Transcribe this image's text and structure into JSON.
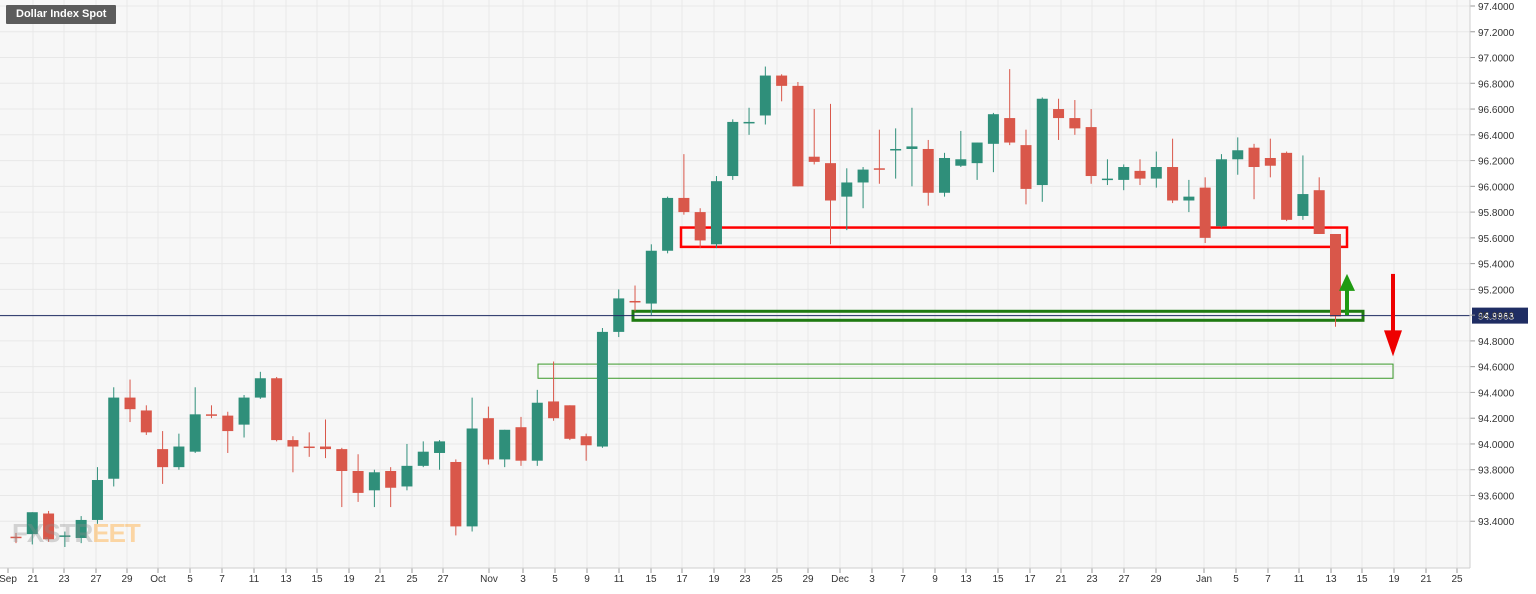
{
  "title": "Dollar Index Spot",
  "watermark": {
    "left": "FXSTR",
    "right": "EET"
  },
  "current_price_label": "94.9963",
  "colors": {
    "up": "#2f8f7a",
    "down": "#d9574a",
    "grid": "#e8e8e8",
    "price_line": "#1f2d63",
    "resistance_box": "#ff0000",
    "support_box": "#1f7a12",
    "lower_box": "#3a9a2a",
    "arrow_up": "#1f9a12",
    "arrow_down": "#ee0000"
  },
  "chart_data": {
    "type": "candlestick",
    "title": "Dollar Index Spot",
    "ylim": [
      93.2,
      97.4
    ],
    "y_ticks": [
      "97.4000",
      "97.2000",
      "97.0000",
      "96.8000",
      "96.6000",
      "96.4000",
      "96.2000",
      "96.0000",
      "95.8000",
      "95.6000",
      "95.4000",
      "95.2000",
      "95.0000",
      "94.8000",
      "94.6000",
      "94.4000",
      "94.2000",
      "94.0000",
      "93.8000",
      "93.6000",
      "93.4000"
    ],
    "x_ticks": [
      "Sep",
      "21",
      "23",
      "27",
      "29",
      "Oct",
      "5",
      "7",
      "11",
      "13",
      "15",
      "19",
      "21",
      "25",
      "27",
      "Nov",
      "3",
      "5",
      "9",
      "11",
      "15",
      "17",
      "19",
      "23",
      "25",
      "29",
      "Dec",
      "3",
      "7",
      "9",
      "13",
      "15",
      "17",
      "21",
      "23",
      "27",
      "29",
      "Jan",
      "5",
      "7",
      "11",
      "13",
      "15",
      "19",
      "21",
      "25"
    ],
    "current_price": 94.9963,
    "candles": [
      {
        "o": 93.28,
        "h": 93.31,
        "l": 93.23,
        "c": 93.27
      },
      {
        "o": 93.3,
        "h": 93.47,
        "l": 93.22,
        "c": 93.47
      },
      {
        "o": 93.46,
        "h": 93.48,
        "l": 93.24,
        "c": 93.26
      },
      {
        "o": 93.28,
        "h": 93.32,
        "l": 93.2,
        "c": 93.29
      },
      {
        "o": 93.27,
        "h": 93.44,
        "l": 93.23,
        "c": 93.41
      },
      {
        "o": 93.41,
        "h": 93.82,
        "l": 93.38,
        "c": 93.72
      },
      {
        "o": 93.73,
        "h": 94.44,
        "l": 93.67,
        "c": 94.36
      },
      {
        "o": 94.36,
        "h": 94.5,
        "l": 94.17,
        "c": 94.27
      },
      {
        "o": 94.26,
        "h": 94.3,
        "l": 94.07,
        "c": 94.09
      },
      {
        "o": 93.96,
        "h": 94.1,
        "l": 93.69,
        "c": 93.82
      },
      {
        "o": 93.82,
        "h": 94.08,
        "l": 93.8,
        "c": 93.98
      },
      {
        "o": 93.94,
        "h": 94.44,
        "l": 93.93,
        "c": 94.23
      },
      {
        "o": 94.23,
        "h": 94.3,
        "l": 94.2,
        "c": 94.22
      },
      {
        "o": 94.22,
        "h": 94.25,
        "l": 93.93,
        "c": 94.1
      },
      {
        "o": 94.15,
        "h": 94.38,
        "l": 94.05,
        "c": 94.36
      },
      {
        "o": 94.36,
        "h": 94.56,
        "l": 94.35,
        "c": 94.51
      },
      {
        "o": 94.51,
        "h": 94.52,
        "l": 94.02,
        "c": 94.03
      },
      {
        "o": 94.03,
        "h": 94.06,
        "l": 93.78,
        "c": 93.98
      },
      {
        "o": 93.98,
        "h": 94.09,
        "l": 93.9,
        "c": 93.97
      },
      {
        "o": 93.98,
        "h": 94.19,
        "l": 93.89,
        "c": 93.96
      },
      {
        "o": 93.96,
        "h": 93.97,
        "l": 93.51,
        "c": 93.79
      },
      {
        "o": 93.79,
        "h": 93.92,
        "l": 93.55,
        "c": 93.62
      },
      {
        "o": 93.64,
        "h": 93.8,
        "l": 93.51,
        "c": 93.78
      },
      {
        "o": 93.79,
        "h": 93.82,
        "l": 93.51,
        "c": 93.66
      },
      {
        "o": 93.67,
        "h": 94.0,
        "l": 93.64,
        "c": 93.83
      },
      {
        "o": 93.83,
        "h": 94.02,
        "l": 93.82,
        "c": 93.94
      },
      {
        "o": 93.93,
        "h": 94.03,
        "l": 93.8,
        "c": 94.02
      },
      {
        "o": 93.86,
        "h": 93.88,
        "l": 93.29,
        "c": 93.36
      },
      {
        "o": 93.36,
        "h": 94.36,
        "l": 93.32,
        "c": 94.12
      },
      {
        "o": 94.2,
        "h": 94.29,
        "l": 93.84,
        "c": 93.88
      },
      {
        "o": 93.88,
        "h": 94.11,
        "l": 93.82,
        "c": 94.11
      },
      {
        "o": 94.13,
        "h": 94.21,
        "l": 93.83,
        "c": 93.87
      },
      {
        "o": 93.87,
        "h": 94.42,
        "l": 93.83,
        "c": 94.32
      },
      {
        "o": 94.33,
        "h": 94.64,
        "l": 94.18,
        "c": 94.2
      },
      {
        "o": 94.3,
        "h": 94.3,
        "l": 94.03,
        "c": 94.04
      },
      {
        "o": 94.06,
        "h": 94.08,
        "l": 93.87,
        "c": 93.99
      },
      {
        "o": 93.98,
        "h": 94.9,
        "l": 93.97,
        "c": 94.87
      },
      {
        "o": 94.87,
        "h": 95.2,
        "l": 94.83,
        "c": 95.13
      },
      {
        "o": 95.11,
        "h": 95.23,
        "l": 95.03,
        "c": 95.1
      },
      {
        "o": 95.09,
        "h": 95.55,
        "l": 95.0,
        "c": 95.5
      },
      {
        "o": 95.5,
        "h": 95.92,
        "l": 95.48,
        "c": 95.91
      },
      {
        "o": 95.91,
        "h": 96.25,
        "l": 95.78,
        "c": 95.8
      },
      {
        "o": 95.8,
        "h": 95.83,
        "l": 95.52,
        "c": 95.58
      },
      {
        "o": 95.55,
        "h": 96.08,
        "l": 95.52,
        "c": 96.04
      },
      {
        "o": 96.08,
        "h": 96.52,
        "l": 96.05,
        "c": 96.5
      },
      {
        "o": 96.5,
        "h": 96.61,
        "l": 96.4,
        "c": 96.5
      },
      {
        "o": 96.55,
        "h": 96.93,
        "l": 96.48,
        "c": 96.86
      },
      {
        "o": 96.86,
        "h": 96.87,
        "l": 96.66,
        "c": 96.78
      },
      {
        "o": 96.78,
        "h": 96.81,
        "l": 96.0,
        "c": 96.0
      },
      {
        "o": 96.23,
        "h": 96.6,
        "l": 96.17,
        "c": 96.19
      },
      {
        "o": 96.18,
        "h": 96.64,
        "l": 95.55,
        "c": 95.89
      },
      {
        "o": 95.92,
        "h": 96.14,
        "l": 95.66,
        "c": 96.03
      },
      {
        "o": 96.03,
        "h": 96.15,
        "l": 95.83,
        "c": 96.13
      },
      {
        "o": 96.14,
        "h": 96.44,
        "l": 96.02,
        "c": 96.13
      },
      {
        "o": 96.28,
        "h": 96.45,
        "l": 96.06,
        "c": 96.29
      },
      {
        "o": 96.29,
        "h": 96.61,
        "l": 96.0,
        "c": 96.31
      },
      {
        "o": 96.29,
        "h": 96.36,
        "l": 95.85,
        "c": 95.95
      },
      {
        "o": 95.95,
        "h": 96.26,
        "l": 95.92,
        "c": 96.22
      },
      {
        "o": 96.16,
        "h": 96.43,
        "l": 96.15,
        "c": 96.21
      },
      {
        "o": 96.18,
        "h": 96.34,
        "l": 96.05,
        "c": 96.34
      },
      {
        "o": 96.33,
        "h": 96.57,
        "l": 96.11,
        "c": 96.56
      },
      {
        "o": 96.53,
        "h": 96.91,
        "l": 96.32,
        "c": 96.34
      },
      {
        "o": 96.32,
        "h": 96.44,
        "l": 95.86,
        "c": 95.98
      },
      {
        "o": 96.01,
        "h": 96.69,
        "l": 95.88,
        "c": 96.68
      },
      {
        "o": 96.6,
        "h": 96.68,
        "l": 96.36,
        "c": 96.53
      },
      {
        "o": 96.53,
        "h": 96.67,
        "l": 96.4,
        "c": 96.45
      },
      {
        "o": 96.46,
        "h": 96.6,
        "l": 96.02,
        "c": 96.08
      },
      {
        "o": 96.06,
        "h": 96.21,
        "l": 96.01,
        "c": 96.06
      },
      {
        "o": 96.05,
        "h": 96.17,
        "l": 95.97,
        "c": 96.15
      },
      {
        "o": 96.12,
        "h": 96.21,
        "l": 96.01,
        "c": 96.06
      },
      {
        "o": 96.06,
        "h": 96.27,
        "l": 95.99,
        "c": 96.15
      },
      {
        "o": 96.15,
        "h": 96.37,
        "l": 95.87,
        "c": 95.89
      },
      {
        "o": 95.89,
        "h": 96.05,
        "l": 95.8,
        "c": 95.92
      },
      {
        "o": 95.99,
        "h": 96.07,
        "l": 95.56,
        "c": 95.6
      },
      {
        "o": 95.69,
        "h": 96.25,
        "l": 95.68,
        "c": 96.21
      },
      {
        "o": 96.21,
        "h": 96.38,
        "l": 96.09,
        "c": 96.28
      },
      {
        "o": 96.3,
        "h": 96.33,
        "l": 95.9,
        "c": 96.15
      },
      {
        "o": 96.22,
        "h": 96.37,
        "l": 96.07,
        "c": 96.16
      },
      {
        "o": 96.26,
        "h": 96.27,
        "l": 95.73,
        "c": 95.74
      },
      {
        "o": 95.77,
        "h": 96.24,
        "l": 95.74,
        "c": 95.94
      },
      {
        "o": 95.97,
        "h": 96.07,
        "l": 95.63,
        "c": 95.63
      },
      {
        "o": 95.63,
        "h": 95.63,
        "l": 94.91,
        "c": 94.99
      }
    ],
    "zones": [
      {
        "name": "resistance-zone",
        "date_from": "Nov 16",
        "date_to": "Jan 14",
        "y_top": 95.68,
        "y_bottom": 95.53
      },
      {
        "name": "support-zone",
        "date_from": "Nov 12",
        "date_to": "Jan 15",
        "y_top": 95.03,
        "y_bottom": 94.96
      },
      {
        "name": "lower-support-zone",
        "date_from": "Nov 4",
        "date_to": "Jan 19",
        "y_top": 94.62,
        "y_bottom": 94.51
      }
    ],
    "arrows": [
      {
        "name": "bullish-arrow",
        "direction": "up",
        "date": "Jan 15",
        "from": 95.0,
        "to": 95.32
      },
      {
        "name": "bearish-arrow",
        "direction": "down",
        "date": "Jan 19",
        "from": 95.32,
        "to": 94.68
      }
    ]
  }
}
